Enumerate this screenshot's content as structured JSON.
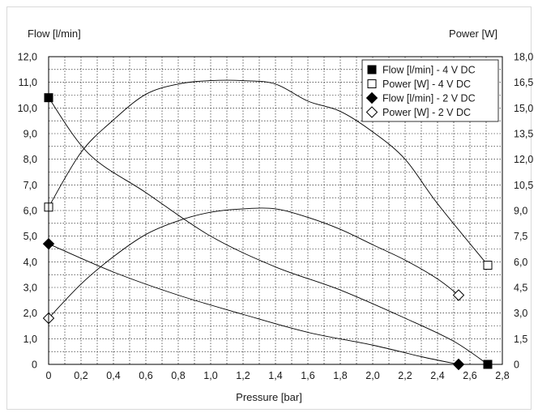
{
  "chart_data": {
    "type": "line",
    "xlabel": "Pressure [bar]",
    "ylabel_left": "Flow [l/min]",
    "ylabel_right": "Power [W]",
    "xlim": [
      0,
      2.8
    ],
    "ylim_left": [
      0,
      12
    ],
    "ylim_right": [
      0,
      18
    ],
    "grid": true,
    "legend_position": "top-right",
    "x_ticks": [
      "0",
      "0,2",
      "0,4",
      "0,6",
      "0,8",
      "1,0",
      "1,2",
      "1,4",
      "1,6",
      "1,8",
      "2,0",
      "2,2",
      "2,4",
      "2,6",
      "2,8"
    ],
    "y_left_ticks": [
      "0",
      "1,0",
      "2,0",
      "3,0",
      "4,0",
      "5,0",
      "6,0",
      "7,0",
      "8,0",
      "9,0",
      "10,0",
      "11,0",
      "12,0"
    ],
    "y_right_ticks": [
      "0",
      "1,5",
      "3,0",
      "4,5",
      "6,0",
      "7,5",
      "9,0",
      "10,5",
      "12,0",
      "13,5",
      "15,0",
      "16,5",
      "18,0"
    ],
    "series": [
      {
        "name": "Flow [l/min] - 4 V DC",
        "axis": "left",
        "marker": "filled-square",
        "x": [
          0,
          0.25,
          0.6,
          1.0,
          1.4,
          1.8,
          2.2,
          2.5,
          2.71
        ],
        "y": [
          10.4,
          8.2,
          6.7,
          5.0,
          3.8,
          2.9,
          1.8,
          0.9,
          0
        ],
        "markers_at": [
          0,
          8
        ]
      },
      {
        "name": "Power [W] - 4 V DC",
        "axis": "right",
        "marker": "open-square",
        "x": [
          0,
          0.2,
          0.4,
          0.6,
          0.8,
          1.0,
          1.2,
          1.4,
          1.6,
          1.8,
          2.0,
          2.2,
          2.4,
          2.71
        ],
        "y": [
          9.2,
          12.4,
          14.3,
          15.8,
          16.4,
          16.6,
          16.6,
          16.4,
          15.4,
          14.8,
          13.6,
          12.0,
          9.4,
          5.8
        ],
        "markers_at": [
          0,
          13
        ]
      },
      {
        "name": "Flow [l/min] - 2 V DC",
        "axis": "left",
        "marker": "filled-diamond",
        "x": [
          0,
          0.4,
          0.8,
          1.2,
          1.6,
          2.0,
          2.3,
          2.53
        ],
        "y": [
          4.7,
          3.6,
          2.7,
          1.95,
          1.25,
          0.75,
          0.3,
          0
        ],
        "markers_at": [
          0,
          7
        ]
      },
      {
        "name": "Power [W] - 2 V DC",
        "axis": "right",
        "marker": "open-diamond",
        "x": [
          0,
          0.2,
          0.4,
          0.6,
          0.8,
          1.0,
          1.2,
          1.4,
          1.6,
          1.8,
          2.0,
          2.2,
          2.4,
          2.53
        ],
        "y": [
          2.7,
          4.7,
          6.3,
          7.6,
          8.4,
          8.9,
          9.1,
          9.1,
          8.6,
          7.9,
          7.0,
          6.1,
          5.0,
          4.05
        ],
        "markers_at": [
          0,
          13
        ]
      }
    ]
  }
}
